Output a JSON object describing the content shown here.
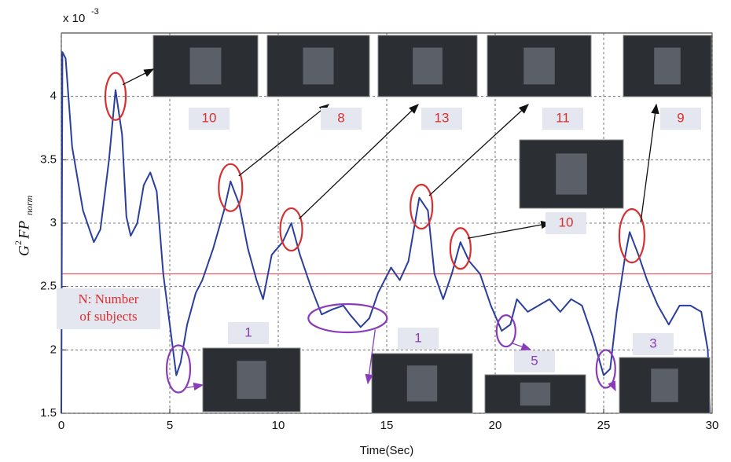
{
  "chart_data": {
    "type": "line",
    "multiplier": {
      "base": "x 10",
      "exponent": "-3"
    },
    "xlabel": "Time(Sec)",
    "ylabel": {
      "base": "G",
      "sup": "2",
      "main": "FP",
      "sub": "norm"
    },
    "x": [
      0,
      0.05,
      0.2,
      0.5,
      1,
      1.5,
      1.8,
      2.2,
      2.5,
      2.8,
      3.0,
      3.2,
      3.5,
      3.8,
      4.1,
      4.4,
      4.7,
      5.0,
      5.3,
      5.5,
      5.8,
      6.2,
      6.5,
      7.0,
      7.5,
      7.8,
      8.2,
      8.6,
      9.0,
      9.3,
      9.7,
      10.2,
      10.6,
      11,
      11.5,
      12,
      12.5,
      13,
      13.3,
      13.8,
      14.2,
      14.6,
      15.2,
      15.6,
      16,
      16.5,
      16.9,
      17.2,
      17.6,
      18.0,
      18.4,
      18.8,
      19.3,
      19.8,
      20.3,
      20.7,
      21,
      21.5,
      22,
      22.5,
      23,
      23.5,
      24,
      24.5,
      25,
      25.3,
      25.6,
      26,
      26.2,
      26.6,
      27,
      27.5,
      28,
      28.5,
      29,
      29.5,
      29.8,
      29.9
    ],
    "values": [
      1.5,
      4.35,
      4.3,
      3.6,
      3.1,
      2.85,
      2.95,
      3.5,
      4.05,
      3.7,
      3.05,
      2.9,
      3.0,
      3.3,
      3.4,
      3.25,
      2.6,
      2.2,
      1.8,
      1.9,
      2.2,
      2.45,
      2.55,
      2.8,
      3.1,
      3.33,
      3.15,
      2.8,
      2.55,
      2.4,
      2.75,
      2.85,
      3.0,
      2.75,
      2.5,
      2.28,
      2.32,
      2.35,
      2.28,
      2.18,
      2.25,
      2.45,
      2.65,
      2.55,
      2.7,
      3.2,
      3.1,
      2.6,
      2.4,
      2.6,
      2.85,
      2.7,
      2.6,
      2.35,
      2.15,
      2.2,
      2.4,
      2.3,
      2.35,
      2.4,
      2.3,
      2.4,
      2.35,
      2.1,
      1.8,
      1.85,
      2.3,
      2.75,
      2.93,
      2.75,
      2.55,
      2.35,
      2.2,
      2.35,
      2.35,
      2.3,
      2.0,
      1.5
    ],
    "color": "#2a3f9d",
    "threshold": 2.6,
    "threshold_color": "#e06060",
    "xlim": [
      0,
      30
    ],
    "xticks": [
      0,
      5,
      10,
      15,
      20,
      25,
      30
    ],
    "ylim": [
      1.5,
      4.5
    ],
    "yticks": [
      1.5,
      2,
      2.5,
      3,
      3.5,
      4
    ],
    "grid": true,
    "annotations": [
      {
        "text": "10",
        "color": "#d83030"
      },
      {
        "text": "8",
        "color": "#d83030"
      },
      {
        "text": "13",
        "color": "#d83030"
      },
      {
        "text": "11",
        "color": "#d83030"
      },
      {
        "text": "9",
        "color": "#d83030"
      },
      {
        "text": "10",
        "color": "#d83030"
      },
      {
        "text": "1",
        "color": "#8a3cb8"
      },
      {
        "text": "1",
        "color": "#8a3cb8"
      },
      {
        "text": "5",
        "color": "#8a3cb8"
      },
      {
        "text": "3",
        "color": "#8a3cb8"
      }
    ],
    "note": [
      "N: Number",
      "of subjects"
    ]
  }
}
